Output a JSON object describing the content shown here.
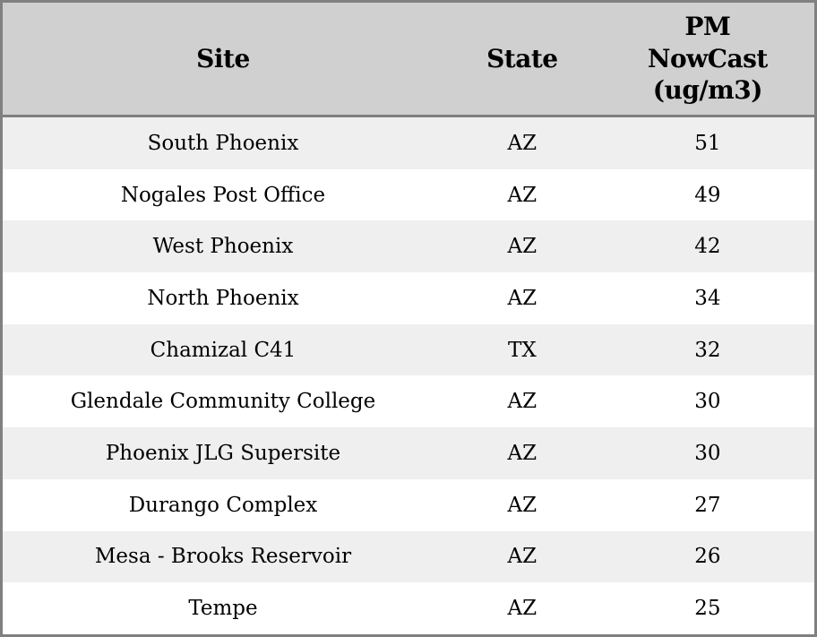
{
  "chart_data": {
    "type": "table",
    "columns": [
      "Site",
      "State",
      "PM NowCast (ug/m3)"
    ],
    "rows": [
      [
        "South Phoenix",
        "AZ",
        51
      ],
      [
        "Nogales Post Office",
        "AZ",
        49
      ],
      [
        "West Phoenix",
        "AZ",
        42
      ],
      [
        "North Phoenix",
        "AZ",
        34
      ],
      [
        "Chamizal C41",
        "TX",
        32
      ],
      [
        "Glendale Community College",
        "AZ",
        30
      ],
      [
        "Phoenix JLG Supersite",
        "AZ",
        30
      ],
      [
        "Durango Complex",
        "AZ",
        27
      ],
      [
        "Mesa - Brooks Reservoir",
        "AZ",
        26
      ],
      [
        "Tempe",
        "AZ",
        25
      ]
    ],
    "title": "",
    "layout_hints": {
      "striped_rows": true,
      "header_position": "top",
      "cell_alignment": "center"
    }
  },
  "colors": {
    "frame_border": "#808080",
    "header_bg": "#d0d0d0",
    "row_odd_bg": "#efefef",
    "row_even_bg": "#ffffff",
    "text": "#000000"
  }
}
